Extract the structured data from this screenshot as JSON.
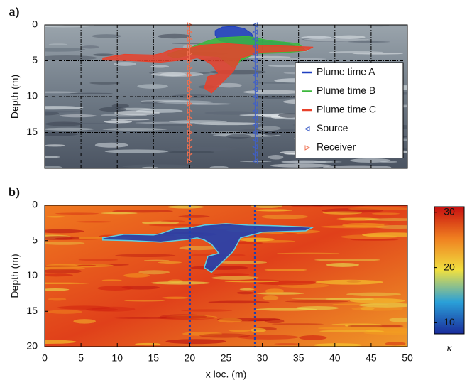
{
  "chart_data": [
    {
      "type": "plume-map",
      "label": "a)",
      "ylabel": "Depth (m)",
      "xlim": [
        0,
        50
      ],
      "ylim": [
        20,
        0
      ],
      "xticks": [
        0,
        5,
        10,
        15,
        20,
        25,
        30,
        35,
        40,
        45,
        50
      ],
      "show_xtick_labels": false,
      "yticks": [
        0,
        5,
        10,
        15
      ],
      "grid": true,
      "legend": "right",
      "series": [
        {
          "name": "Plume time A",
          "color": "#1f3fc0",
          "kind": "area",
          "x": [
            23.5,
            24.5,
            26,
            27.5,
            28.5,
            29,
            33,
            34.5,
            33,
            29,
            26,
            24,
            23.5
          ],
          "y": [
            0.8,
            0.3,
            0.2,
            0.5,
            1.2,
            2.2,
            2.4,
            2.9,
            3.1,
            2.8,
            2.6,
            2.2,
            1.4
          ]
        },
        {
          "name": "Plume time B",
          "color": "#3cb83c",
          "kind": "area",
          "x": [
            17,
            20,
            22,
            24,
            28,
            31,
            35,
            36,
            33,
            29,
            27,
            26,
            24,
            20,
            18,
            17
          ],
          "y": [
            4.0,
            3.2,
            2.4,
            1.8,
            1.6,
            2.2,
            2.6,
            3.6,
            3.9,
            4.0,
            5.0,
            6.0,
            4.4,
            4.2,
            4.6,
            4.3
          ]
        },
        {
          "name": "Plume time C",
          "color": "#e8412b",
          "kind": "area",
          "x": [
            8,
            11,
            15,
            16,
            18,
            20,
            22,
            25,
            28,
            32,
            37,
            36,
            30,
            27,
            26,
            25,
            24,
            23,
            22,
            22.5,
            24,
            23,
            22,
            21,
            20,
            16,
            12,
            8
          ],
          "y": [
            4.6,
            4.1,
            4.2,
            4.0,
            3.3,
            3.2,
            2.8,
            2.6,
            2.8,
            2.9,
            3.1,
            3.6,
            3.8,
            4.6,
            6.5,
            7.5,
            8.5,
            9.5,
            8.8,
            7.2,
            6.8,
            5.5,
            4.9,
            4.6,
            4.8,
            5.2,
            5.0,
            4.9
          ]
        },
        {
          "name": "Source",
          "color": "#4060c8",
          "kind": "marker",
          "marker": "left",
          "x": [
            29,
            29,
            29,
            29,
            29,
            29,
            29,
            29,
            29,
            29,
            29,
            29,
            29,
            29,
            29,
            29,
            29,
            29,
            29,
            29
          ],
          "y": [
            0,
            1,
            2,
            3,
            4,
            5,
            6,
            7,
            8,
            9,
            10,
            11,
            12,
            13,
            14,
            15,
            16,
            17,
            18,
            19
          ]
        },
        {
          "name": "Receiver",
          "color": "#f07050",
          "kind": "marker",
          "marker": "right",
          "x": [
            20,
            20,
            20,
            20,
            20,
            20,
            20,
            20,
            20,
            20,
            20,
            20,
            20,
            20,
            20,
            20,
            20,
            20,
            20,
            20
          ],
          "y": [
            0,
            1,
            2,
            3,
            4,
            5,
            6,
            7,
            8,
            9,
            10,
            11,
            12,
            13,
            14,
            15,
            16,
            17,
            18,
            19
          ]
        }
      ]
    },
    {
      "type": "heatmap",
      "label": "b)",
      "ylabel": "Depth (m)",
      "xlabel": "x loc. (m)",
      "xlim": [
        0,
        50
      ],
      "ylim": [
        20,
        0
      ],
      "xticks": [
        0,
        5,
        10,
        15,
        20,
        25,
        30,
        35,
        40,
        45,
        50
      ],
      "show_xtick_labels": true,
      "yticks": [
        0,
        5,
        10,
        15,
        20
      ],
      "series": [
        {
          "color": "#2040b0",
          "kind": "area",
          "x": [
            8,
            11,
            15,
            16,
            18,
            20,
            22,
            25,
            28,
            32,
            37,
            36,
            30,
            27,
            26,
            25,
            24,
            23,
            22,
            22.5,
            24,
            23,
            22,
            21,
            20,
            16,
            12,
            8
          ],
          "y": [
            4.6,
            4.1,
            4.2,
            4.0,
            3.3,
            3.2,
            2.8,
            2.6,
            2.8,
            2.9,
            3.1,
            3.6,
            3.8,
            4.6,
            6.5,
            7.5,
            8.5,
            9.5,
            8.8,
            7.2,
            6.8,
            5.5,
            4.9,
            4.6,
            4.8,
            5.2,
            5.0,
            4.9
          ]
        },
        {
          "color": "#2040b0",
          "kind": "dotted",
          "x": [
            20,
            20
          ],
          "y": [
            0,
            20
          ]
        },
        {
          "color": "#2040b0",
          "kind": "dotted",
          "x": [
            29,
            29
          ],
          "y": [
            0,
            20
          ]
        }
      ],
      "colorbar": {
        "label": "κ",
        "lim": [
          8,
          31
        ],
        "ticks": [
          10,
          20,
          30
        ],
        "colors": [
          "#1a2c9c",
          "#2aa0d8",
          "#f0e040",
          "#f08020",
          "#c81010"
        ]
      }
    }
  ]
}
